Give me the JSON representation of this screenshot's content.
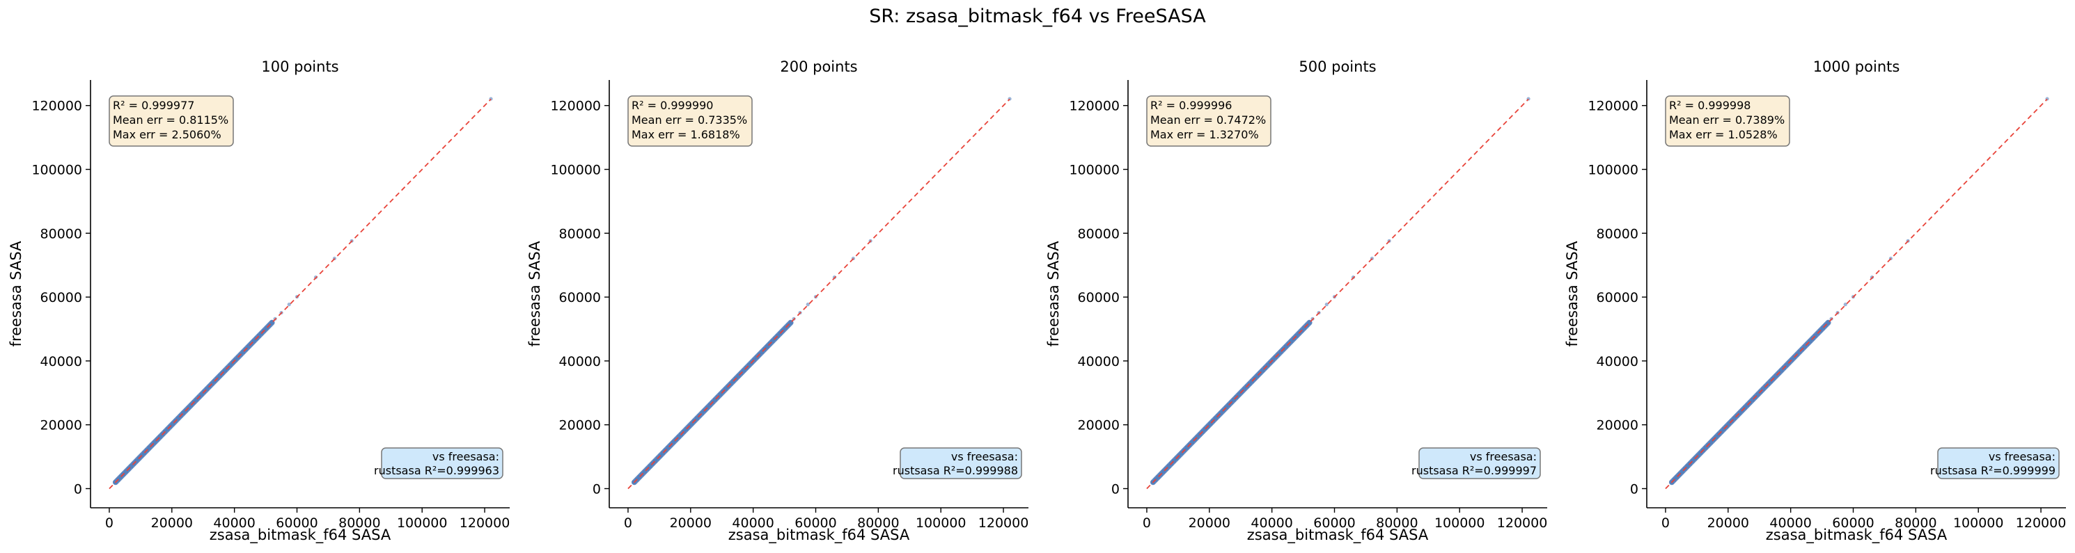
{
  "suptitle": "SR: zsasa_bitmask_f64 vs FreeSASA",
  "colors": {
    "points": "#4a78b8",
    "identity_line": "#e8443a",
    "stats_box_fill": "#fbefd7",
    "stats_box_edge": "#777777",
    "ref_box_fill": "#cfe8fb",
    "ref_box_edge": "#777777"
  },
  "chart_data": [
    {
      "type": "scatter",
      "title": "100 points",
      "xlabel": "zsasa_bitmask_f64 SASA",
      "ylabel": "freesasa SASA",
      "xlim": [
        -6000,
        128000
      ],
      "ylim": [
        -6000,
        128000
      ],
      "xticks": [
        "0",
        "20000",
        "40000",
        "60000",
        "80000",
        "100000",
        "120000"
      ],
      "yticks": [
        "0",
        "20000",
        "40000",
        "60000",
        "80000",
        "100000",
        "120000"
      ],
      "identity_line": [
        [
          0,
          0
        ],
        [
          122000,
          122000
        ]
      ],
      "points_range": [
        2000,
        52000
      ],
      "sparse_points": [
        [
          53000,
          53200
        ],
        [
          55000,
          55100
        ],
        [
          57500,
          57700
        ],
        [
          60000,
          60100
        ],
        [
          66000,
          66200
        ],
        [
          72000,
          72100
        ],
        [
          77500,
          77600
        ],
        [
          122000,
          122100
        ]
      ],
      "stats_text": [
        "R² = 0.999977",
        "Mean err = 0.8115%",
        "Max err = 2.5060%"
      ],
      "ref_text": [
        "vs freesasa:",
        "rustsasa R²=0.999963"
      ]
    },
    {
      "type": "scatter",
      "title": "200 points",
      "xlabel": "zsasa_bitmask_f64 SASA",
      "ylabel": "freesasa SASA",
      "xlim": [
        -6000,
        128000
      ],
      "ylim": [
        -6000,
        128000
      ],
      "xticks": [
        "0",
        "20000",
        "40000",
        "60000",
        "80000",
        "100000",
        "120000"
      ],
      "yticks": [
        "0",
        "20000",
        "40000",
        "60000",
        "80000",
        "100000",
        "120000"
      ],
      "identity_line": [
        [
          0,
          0
        ],
        [
          122000,
          122000
        ]
      ],
      "points_range": [
        2000,
        52000
      ],
      "sparse_points": [
        [
          53000,
          53200
        ],
        [
          55000,
          55100
        ],
        [
          57500,
          57700
        ],
        [
          60000,
          60100
        ],
        [
          66000,
          66200
        ],
        [
          72000,
          72100
        ],
        [
          77500,
          77600
        ],
        [
          122000,
          122100
        ]
      ],
      "stats_text": [
        "R² = 0.999990",
        "Mean err = 0.7335%",
        "Max err = 1.6818%"
      ],
      "ref_text": [
        "vs freesasa:",
        "rustsasa R²=0.999988"
      ]
    },
    {
      "type": "scatter",
      "title": "500 points",
      "xlabel": "zsasa_bitmask_f64 SASA",
      "ylabel": "freesasa SASA",
      "xlim": [
        -6000,
        128000
      ],
      "ylim": [
        -6000,
        128000
      ],
      "xticks": [
        "0",
        "20000",
        "40000",
        "60000",
        "80000",
        "100000",
        "120000"
      ],
      "yticks": [
        "0",
        "20000",
        "40000",
        "60000",
        "80000",
        "100000",
        "120000"
      ],
      "identity_line": [
        [
          0,
          0
        ],
        [
          122000,
          122000
        ]
      ],
      "points_range": [
        2000,
        52000
      ],
      "sparse_points": [
        [
          53000,
          53200
        ],
        [
          55000,
          55100
        ],
        [
          57500,
          57700
        ],
        [
          60000,
          60100
        ],
        [
          66000,
          66200
        ],
        [
          72000,
          72100
        ],
        [
          77500,
          77600
        ],
        [
          122000,
          122100
        ]
      ],
      "stats_text": [
        "R² = 0.999996",
        "Mean err = 0.7472%",
        "Max err = 1.3270%"
      ],
      "ref_text": [
        "vs freesasa:",
        "rustsasa R²=0.999997"
      ]
    },
    {
      "type": "scatter",
      "title": "1000 points",
      "xlabel": "zsasa_bitmask_f64 SASA",
      "ylabel": "freesasa SASA",
      "xlim": [
        -6000,
        128000
      ],
      "ylim": [
        -6000,
        128000
      ],
      "xticks": [
        "0",
        "20000",
        "40000",
        "60000",
        "80000",
        "100000",
        "120000"
      ],
      "yticks": [
        "0",
        "20000",
        "40000",
        "60000",
        "80000",
        "100000",
        "120000"
      ],
      "identity_line": [
        [
          0,
          0
        ],
        [
          122000,
          122000
        ]
      ],
      "points_range": [
        2000,
        52000
      ],
      "sparse_points": [
        [
          53000,
          53200
        ],
        [
          55000,
          55100
        ],
        [
          57500,
          57700
        ],
        [
          60000,
          60100
        ],
        [
          66000,
          66200
        ],
        [
          72000,
          72100
        ],
        [
          77500,
          77600
        ],
        [
          122000,
          122100
        ]
      ],
      "stats_text": [
        "R² = 0.999998",
        "Mean err = 0.7389%",
        "Max err = 1.0528%"
      ],
      "ref_text": [
        "vs freesasa:",
        "rustsasa R²=0.999999"
      ]
    }
  ]
}
